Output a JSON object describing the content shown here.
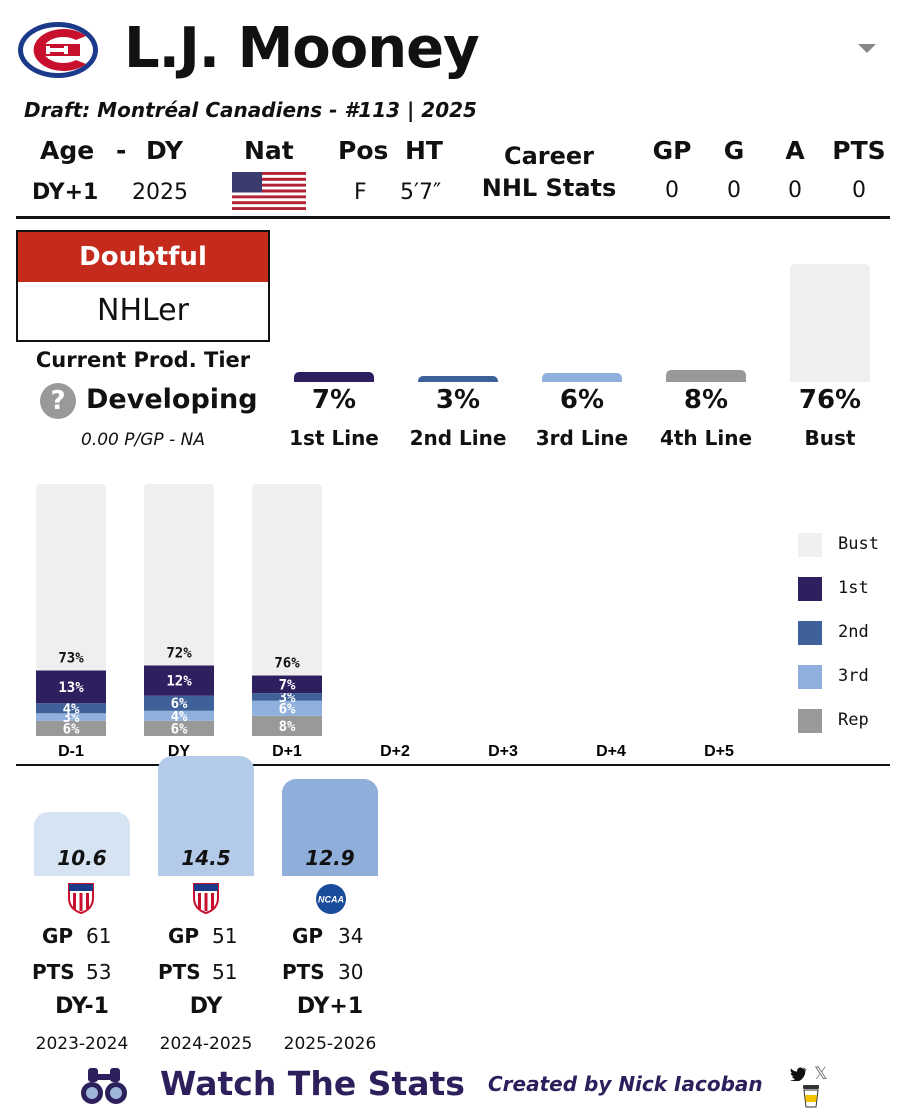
{
  "colors": {
    "doubtful_red": "#c42b1c",
    "first_line": "#2e1f5e",
    "second_line": "#3f6199",
    "third_line": "#8fb0dc",
    "fourth_line": "#999999",
    "bust": "#efefef",
    "brand_purple": "#2d1f5c"
  },
  "header": {
    "player_name": "L.J. Mooney",
    "draft_line": "Draft: Montréal Canadiens - #113 | 2025",
    "dropdown_icon": "chevron-down-icon",
    "team_logo_icon": "canadiens-logo"
  },
  "bio": {
    "age_label": "Age",
    "dash": "-",
    "dy_label": "DY",
    "nat_label": "Nat",
    "pos_label": "Pos",
    "ht_label": "HT",
    "age_value": "DY+1",
    "dy_value": "2025",
    "nat_flag_icon": "usa-flag-icon",
    "pos_value": "F",
    "ht_value": "5′7″"
  },
  "career": {
    "label_line1": "Career",
    "label_line2": "NHL Stats",
    "headers": [
      "GP",
      "G",
      "A",
      "PTS"
    ],
    "values": [
      "0",
      "0",
      "0",
      "0"
    ]
  },
  "tier": {
    "verdict": "Doubtful",
    "outcome": "NHLer",
    "current_label": "Current Prod. Tier",
    "current_value": "Developing",
    "current_icon": "question-icon",
    "ppg_line": "0.00 P/GP - NA"
  },
  "outcomes": [
    {
      "pct": "7%",
      "label": "1st Line",
      "value": 7
    },
    {
      "pct": "3%",
      "label": "2nd Line",
      "value": 3
    },
    {
      "pct": "6%",
      "label": "3rd Line",
      "value": 6
    },
    {
      "pct": "8%",
      "label": "4th Line",
      "value": 8
    },
    {
      "pct": "76%",
      "label": "Bust",
      "value": 76
    }
  ],
  "chart_data": {
    "type": "bar",
    "stacked": true,
    "categories": [
      "D-1",
      "DY",
      "D+1",
      "D+2",
      "D+3",
      "D+4",
      "D+5"
    ],
    "series": [
      {
        "name": "Rep",
        "values": [
          6,
          6,
          8,
          null,
          null,
          null,
          null
        ]
      },
      {
        "name": "3rd",
        "values": [
          3,
          4,
          6,
          null,
          null,
          null,
          null
        ]
      },
      {
        "name": "2nd",
        "values": [
          4,
          6,
          3,
          null,
          null,
          null,
          null
        ]
      },
      {
        "name": "1st",
        "values": [
          13,
          12,
          7,
          null,
          null,
          null,
          null
        ]
      },
      {
        "name": "Bust",
        "values": [
          73,
          72,
          76,
          null,
          null,
          null,
          null
        ]
      }
    ],
    "legend": [
      "Bust",
      "1st",
      "2nd",
      "3rd",
      "Rep"
    ],
    "legend_position": "right",
    "ylim": [
      0,
      100
    ]
  },
  "seasons": [
    {
      "value": "10.6",
      "metric": 10.6,
      "league_icon": "ushl-shield-icon",
      "gp_label": "GP",
      "gp": "61",
      "pts_label": "PTS",
      "pts": "53",
      "dy": "DY-1",
      "years": "2023-2024"
    },
    {
      "value": "14.5",
      "metric": 14.5,
      "league_icon": "ushl-shield-icon",
      "gp_label": "GP",
      "gp": "51",
      "pts_label": "PTS",
      "pts": "51",
      "dy": "DY",
      "years": "2024-2025"
    },
    {
      "value": "12.9",
      "metric": 12.9,
      "league_icon": "ncaa-icon",
      "gp_label": "GP",
      "gp": "34",
      "pts_label": "PTS",
      "pts": "30",
      "dy": "DY+1",
      "years": "2025-2026"
    }
  ],
  "footer": {
    "brand": "Watch The Stats",
    "creator": "Created by Nick Iacoban",
    "binoculars_icon": "binoculars-icon",
    "twitter_icon": "twitter-icon",
    "x_icon": "x-icon",
    "coffee_icon": "coffee-icon"
  }
}
